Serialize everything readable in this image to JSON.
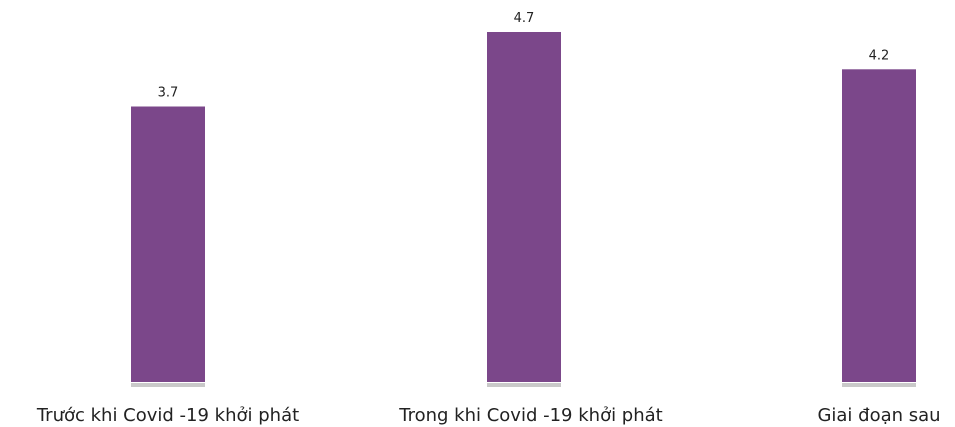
{
  "chart_data": {
    "type": "bar",
    "categories": [
      "Trước khi Covid -19 khởi phát",
      "Trong khi Covid -19 khởi phát",
      "Giai đoạn sau"
    ],
    "values": [
      3.7,
      4.7,
      4.2
    ],
    "data_labels": [
      "3.7",
      "4.7",
      "4.2"
    ],
    "ylim": [
      0,
      5
    ],
    "grid": false,
    "legend": "none",
    "colors": {
      "bar": "#7b478a",
      "baseline": "#c9c9c9",
      "text": "#222222"
    }
  }
}
